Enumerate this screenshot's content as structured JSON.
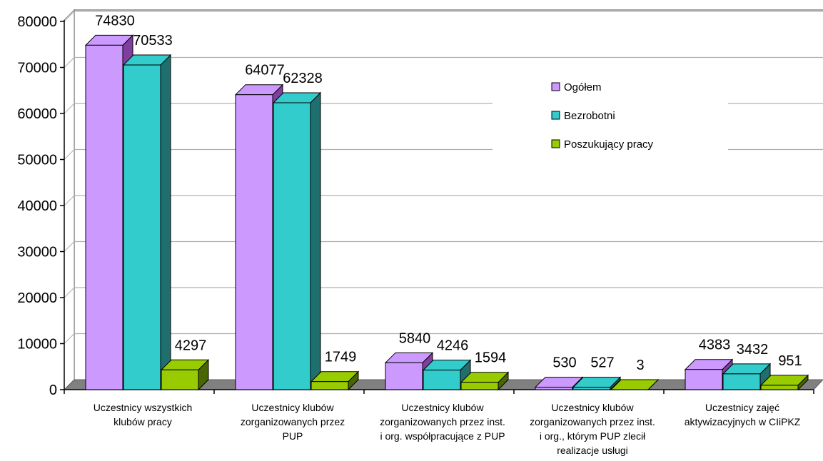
{
  "chart_data": {
    "type": "bar",
    "title": "",
    "xlabel": "",
    "ylabel": "",
    "ylim": [
      0,
      80000
    ],
    "yticks": [
      0,
      10000,
      20000,
      30000,
      40000,
      50000,
      60000,
      70000,
      80000
    ],
    "grid": true,
    "legend_position": "right",
    "categories": [
      [
        "Uczestnicy wszystkich",
        "klubów pracy"
      ],
      [
        "Uczestnicy klubów",
        "zorganizowanych przez",
        "PUP"
      ],
      [
        "Uczestnicy klubów",
        "zorganizowanych przez inst.",
        "i org. współpracujące z PUP"
      ],
      [
        "Uczestnicy klubów",
        "zorganizowanych przez inst.",
        "i org., którym PUP zlecił",
        "realizacje usługi"
      ],
      [
        "Uczestnicy zajęć",
        "aktywizacyjnych w CIiPKZ"
      ]
    ],
    "series": [
      {
        "name": "Ogółem",
        "color": "#cc99ff",
        "side": "#7f3f9f",
        "values": [
          74830,
          64077,
          5840,
          530,
          4383
        ]
      },
      {
        "name": "Bezrobotni",
        "color": "#33cccc",
        "side": "#1f6f6f",
        "values": [
          70533,
          62328,
          4246,
          527,
          3432
        ]
      },
      {
        "name": "Poszukujący pracy",
        "color": "#99cc00",
        "side": "#4a6600",
        "values": [
          4297,
          1749,
          1594,
          3,
          951
        ]
      }
    ]
  }
}
